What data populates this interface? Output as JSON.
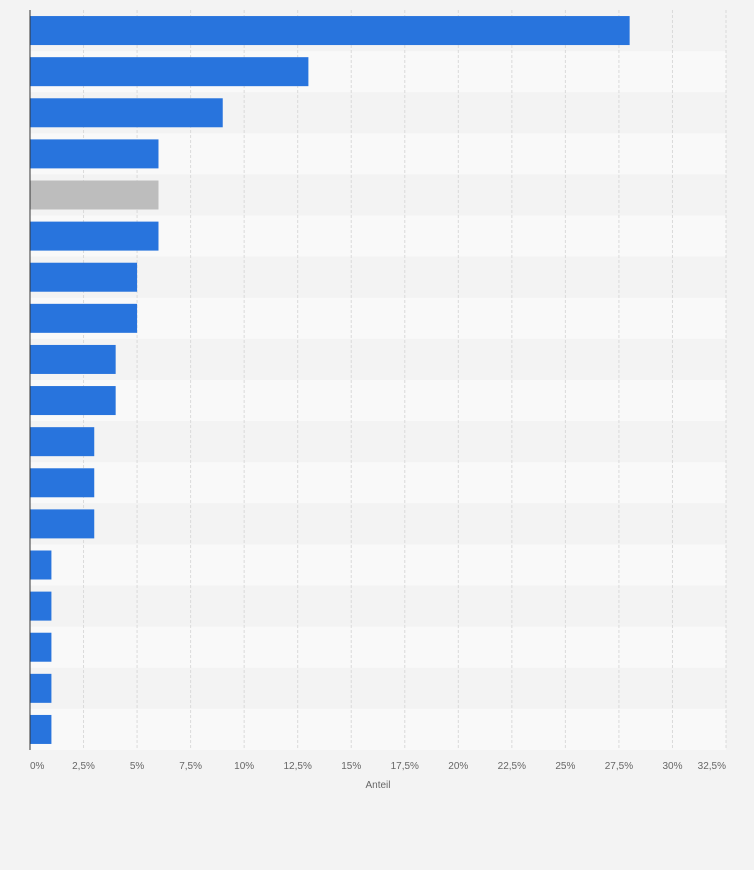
{
  "chart_data": {
    "type": "bar",
    "orientation": "horizontal",
    "xlabel": "Anteil",
    "xlim": [
      0,
      32.5
    ],
    "x_ticks": [
      0,
      2.5,
      5,
      7.5,
      10,
      12.5,
      15,
      17.5,
      20,
      22.5,
      25,
      27.5,
      30,
      32.5
    ],
    "x_tick_labels": [
      "0%",
      "2,5%",
      "5%",
      "7,5%",
      "10%",
      "12,5%",
      "15%",
      "17,5%",
      "20%",
      "22,5%",
      "25%",
      "27,5%",
      "30%",
      "32,5%"
    ],
    "grid": true,
    "legend": "none",
    "values": [
      28,
      13,
      9,
      6,
      6,
      6,
      5,
      5,
      4,
      4,
      3,
      3,
      3,
      1,
      1,
      1,
      1,
      1
    ],
    "highlight_index": 4,
    "colors": {
      "bar": "#2874dd",
      "highlight": "#bdbdbd",
      "row_even": "#f3f3f3",
      "row_odd": "#f9f9f9",
      "grid": "#dadada",
      "axis": "#333333",
      "text": "#666666"
    }
  }
}
